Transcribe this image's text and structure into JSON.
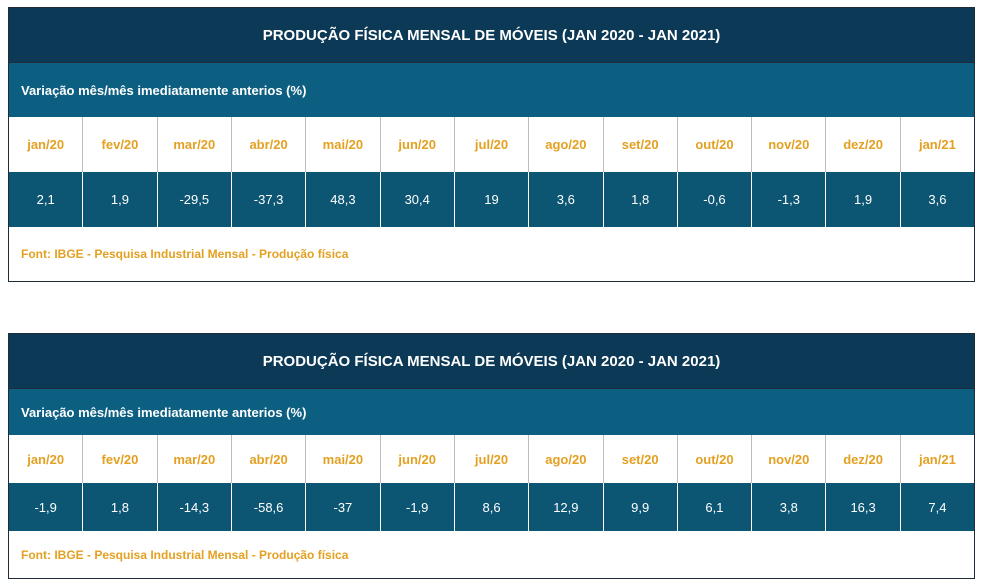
{
  "tables": [
    {
      "title": "PRODUÇÃO FÍSICA MENSAL DE MÓVEIS (JAN 2020 - JAN 2021)",
      "subtitle": "Variação mês/mês imediatamente anterios (%)",
      "months": [
        "jan/20",
        "fev/20",
        "mar/20",
        "abr/20",
        "mai/20",
        "jun/20",
        "jul/20",
        "ago/20",
        "set/20",
        "out/20",
        "nov/20",
        "dez/20",
        "jan/21"
      ],
      "values": [
        "2,1",
        "1,9",
        "-29,5",
        "-37,3",
        "48,3",
        "30,4",
        "19",
        "3,6",
        "1,8",
        "-0,6",
        "-1,3",
        "1,9",
        "3,6"
      ],
      "source": "Font: IBGE - Pesquisa Industrial Mensal - Produção física"
    },
    {
      "title": "PRODUÇÃO FÍSICA MENSAL DE MÓVEIS (JAN 2020 - JAN 2021)",
      "subtitle": "Variação mês/mês imediatamente anterios (%)",
      "months": [
        "jan/20",
        "fev/20",
        "mar/20",
        "abr/20",
        "mai/20",
        "jun/20",
        "jul/20",
        "ago/20",
        "set/20",
        "out/20",
        "nov/20",
        "dez/20",
        "jan/21"
      ],
      "values": [
        "-1,9",
        "1,8",
        "-14,3",
        "-58,6",
        "-37",
        "-1,9",
        "8,6",
        "12,9",
        "9,9",
        "6,1",
        "3,8",
        "16,3",
        "7,4"
      ],
      "source": "Font: IBGE - Pesquisa Industrial Mensal - Produção física"
    }
  ],
  "colors": {
    "title_bg": "#0c3956",
    "subtitle_bg": "#0d5f82",
    "value_row_bg": "#0d5673",
    "accent_text": "#e3a021"
  }
}
